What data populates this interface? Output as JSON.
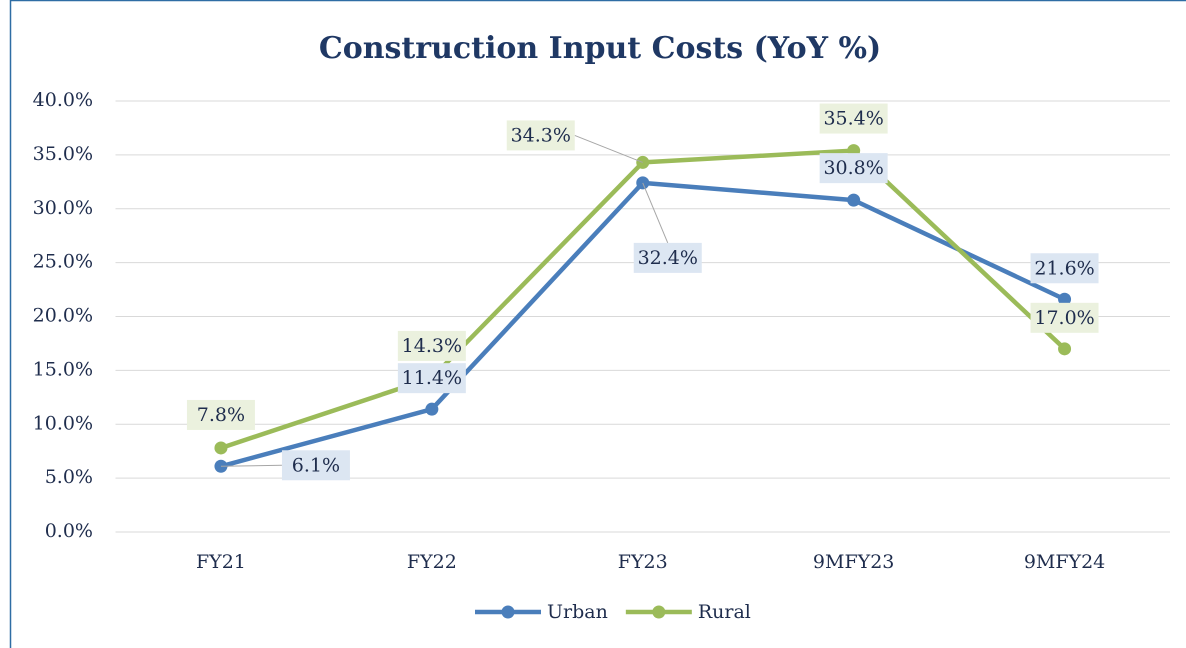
{
  "chart_data": {
    "type": "line",
    "title": "Construction Input Costs (YoY %)",
    "categories": [
      "FY21",
      "FY22",
      "FY23",
      "9MFY23",
      "9MFY24"
    ],
    "series": [
      {
        "name": "Urban",
        "color": "#4a7ebb",
        "values": [
          6.1,
          11.4,
          32.4,
          30.8,
          21.6
        ],
        "value_labels": [
          "6.1%",
          "11.4%",
          "32.4%",
          "30.8%",
          "21.6%"
        ],
        "label_fill": "#dce6f2"
      },
      {
        "name": "Rural",
        "color": "#9bbb59",
        "values": [
          7.8,
          14.3,
          34.3,
          35.4,
          17.0
        ],
        "value_labels": [
          "7.8%",
          "14.3%",
          "34.3%",
          "35.4%",
          "17.0%"
        ],
        "label_fill": "#ebf1de"
      }
    ],
    "ylim": [
      0,
      40
    ],
    "yticks": [
      {
        "value": 0,
        "label": "0.0%"
      },
      {
        "value": 5,
        "label": "5.0%"
      },
      {
        "value": 10,
        "label": "10.0%"
      },
      {
        "value": 15,
        "label": "15.0%"
      },
      {
        "value": 20,
        "label": "20.0%"
      },
      {
        "value": 25,
        "label": "25.0%"
      },
      {
        "value": 30,
        "label": "30.0%"
      },
      {
        "value": 35,
        "label": "35.0%"
      },
      {
        "value": 40,
        "label": "40.0%"
      }
    ],
    "grid": true,
    "legend": "bottom"
  }
}
